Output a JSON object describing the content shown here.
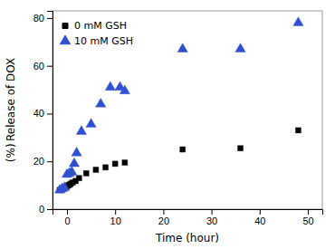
{
  "chart_data": {
    "type": "scatter",
    "xlabel": "Time (hour)",
    "ylabel": "(%) Release of DOX",
    "xlim": [
      -3,
      53
    ],
    "ylim": [
      0,
      83
    ],
    "xticks": [
      0,
      10,
      20,
      30,
      40,
      50
    ],
    "yticks": [
      0,
      20,
      40,
      60,
      80
    ],
    "legend": "upper left",
    "series": [
      {
        "name": "0 mM GSH",
        "color": "black",
        "marker": "square",
        "x": [
          -1.5,
          -1.0,
          -0.7,
          -0.4,
          -0.1,
          0.1,
          0.3,
          0.6,
          0.8,
          1.2,
          1.8,
          2.5,
          4.0,
          6.0,
          8.0,
          10.0,
          12.0,
          24.0,
          36.0,
          48.0
        ],
        "values": [
          8.0,
          8.3,
          8.7,
          9.2,
          9.5,
          9.8,
          10.0,
          10.3,
          10.7,
          11.2,
          11.8,
          13.0,
          15.0,
          16.5,
          17.5,
          19.0,
          19.5,
          25.0,
          25.5,
          33.0
        ]
      },
      {
        "name": "10 mM GSH",
        "color": "#3050d0",
        "marker": "triangle",
        "x": [
          -1.5,
          -1.0,
          -0.5,
          0.0,
          0.5,
          1.0,
          1.5,
          2.0,
          3.0,
          5.0,
          7.0,
          9.0,
          11.0,
          12.0,
          24.0,
          36.0,
          48.0
        ],
        "values": [
          8.0,
          8.5,
          9.0,
          14.5,
          15.0,
          15.5,
          19.0,
          23.5,
          32.5,
          35.5,
          44.0,
          51.0,
          51.0,
          49.5,
          67.0,
          67.0,
          78.0
        ]
      }
    ]
  }
}
